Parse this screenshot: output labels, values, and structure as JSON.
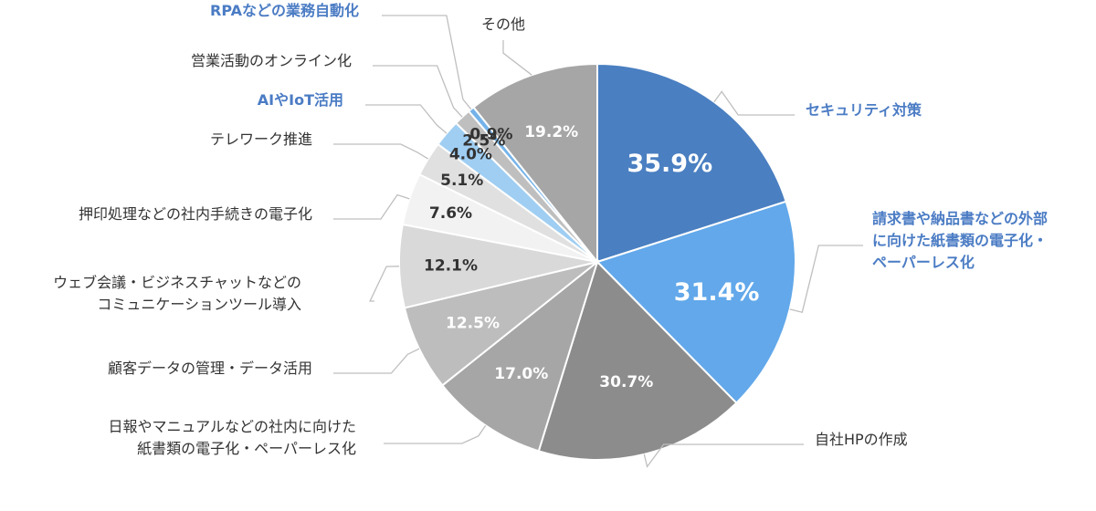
{
  "chart_data": {
    "type": "pie",
    "title": "",
    "series": [
      {
        "values": [
          35.9,
          31.4,
          30.7,
          17.0,
          12.5,
          12.1,
          7.6,
          5.1,
          4.0,
          2.5,
          0.9,
          19.2
        ],
        "value_labels": [
          "35.9%",
          "31.4%",
          "30.7%",
          "17.0%",
          "12.5%",
          "12.1%",
          "7.6%",
          "5.1%",
          "4.0%",
          "2.5%",
          "0.9%",
          "19.2%"
        ]
      }
    ],
    "categories": [
      "セキュリティ対策",
      "請求書や納品書などの外部|に向けた紙書類の電子化・|ペーパーレス化",
      "自社HPの作成",
      "日報やマニュアルなどの社内に向けた|紙書類の電子化・ペーパーレス化",
      "顧客データの管理・データ活用",
      "ウェブ会議・ビジネスチャットなどの|コミュニケーションツール導入",
      "押印処理などの社内手続きの電子化",
      "テレワーク推進",
      "AIやIoT活用",
      "営業活動のオンライン化",
      "RPAなどの業務自動化",
      "その他"
    ],
    "highlighted": [
      true,
      true,
      false,
      false,
      false,
      false,
      false,
      false,
      true,
      false,
      true,
      false
    ],
    "colors": [
      "#4a7fc1",
      "#62a8ea",
      "#8c8c8c",
      "#a6a6a6",
      "#bdbdbd",
      "#d9d9d9",
      "#f2f2f2",
      "#e0e0e0",
      "#9fcef2",
      "#bfbfbf",
      "#74b3ea",
      "#a6a6a6"
    ],
    "label_colors": [
      "#ffffff",
      "#ffffff",
      "#ffffff",
      "#ffffff",
      "#ffffff",
      "#333333",
      "#333333",
      "#333333",
      "#333333",
      "#333333",
      "#333333",
      "#ffffff"
    ],
    "highlight_color": "#4b7cc4",
    "text_color": "#333333",
    "legend": "none"
  }
}
